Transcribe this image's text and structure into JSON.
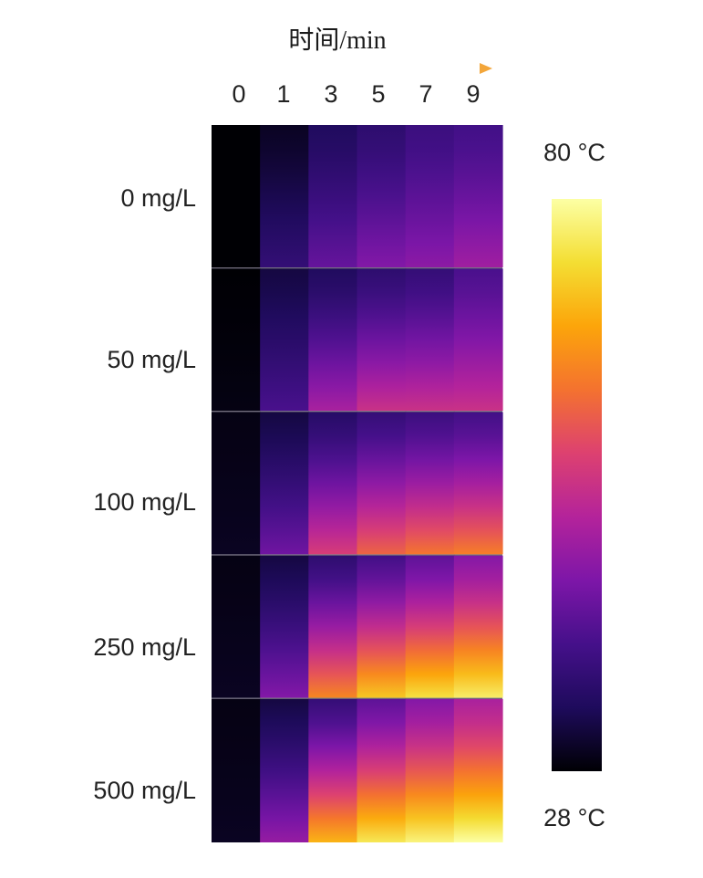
{
  "chart_data": {
    "type": "heatmap",
    "title": "",
    "xlabel": "时间/min",
    "ylabel": "",
    "x": [
      "0",
      "1",
      "3",
      "5",
      "7",
      "9"
    ],
    "rows": [
      "0 mg/L",
      "50 mg/L",
      "100 mg/L",
      "250 mg/L",
      "500 mg/L"
    ],
    "values_top": [
      [
        28,
        30,
        34,
        36,
        38,
        39
      ],
      [
        28,
        32,
        34,
        36,
        37,
        40
      ],
      [
        29,
        32,
        35,
        37,
        38,
        39
      ],
      [
        29,
        32,
        36,
        39,
        42,
        46
      ],
      [
        29,
        32,
        37,
        42,
        46,
        50
      ]
    ],
    "values_bottom": [
      [
        28,
        37,
        43,
        46,
        47,
        49
      ],
      [
        29,
        40,
        50,
        54,
        54,
        54
      ],
      [
        30,
        44,
        56,
        61,
        63,
        64
      ],
      [
        30,
        46,
        65,
        72,
        75,
        77
      ],
      [
        30,
        48,
        70,
        76,
        78,
        80
      ]
    ],
    "colorbar": {
      "min": 28,
      "max": 80,
      "min_label": "28 °C",
      "max_label": "80 °C",
      "colormap": "plasma-like",
      "colors": [
        "#000004",
        "#1e0b5c",
        "#45108a",
        "#7d16a8",
        "#b4239b",
        "#dd4170",
        "#f4722f",
        "#fca50a",
        "#f4de33",
        "#fcffa4"
      ]
    },
    "time_arrow_colors": [
      "#1b1464",
      "#f3a63a"
    ]
  }
}
